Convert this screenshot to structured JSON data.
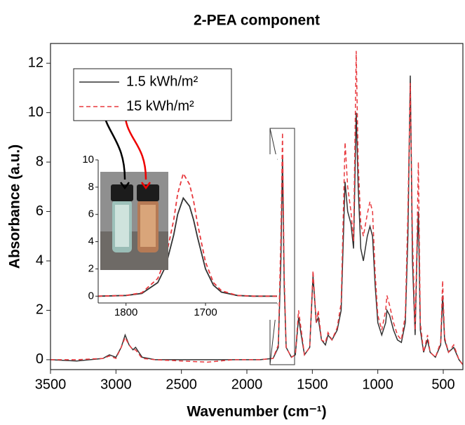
{
  "chart_data": [
    {
      "type": "line",
      "title": "2-PEA component",
      "xlabel": "Wavenumber (cm⁻¹)",
      "ylabel": "Absorbance (a.u.)",
      "x": [
        3500,
        3300,
        3100,
        3050,
        3000,
        2960,
        2930,
        2900,
        2870,
        2850,
        2800,
        2700,
        2500,
        2300,
        2100,
        1900,
        1800,
        1760,
        1740,
        1728,
        1715,
        1700,
        1660,
        1630,
        1605,
        1585,
        1560,
        1520,
        1495,
        1470,
        1455,
        1430,
        1400,
        1380,
        1350,
        1310,
        1280,
        1250,
        1230,
        1205,
        1185,
        1165,
        1150,
        1130,
        1110,
        1080,
        1060,
        1040,
        1020,
        1000,
        970,
        940,
        930,
        910,
        880,
        850,
        820,
        790,
        770,
        752,
        735,
        715,
        700,
        690,
        675,
        650,
        620,
        600,
        560,
        520,
        505,
        490,
        460,
        420,
        380,
        350
      ],
      "series": [
        {
          "name": "1.5 kWh/m²",
          "color": "#333333",
          "line_style": "solid",
          "values": [
            0,
            -0.05,
            0.05,
            0.2,
            0.1,
            0.5,
            1.0,
            0.6,
            0.4,
            0.5,
            0.1,
            0,
            0,
            0,
            0,
            0,
            0.05,
            0.5,
            4,
            8.2,
            3,
            0.5,
            0.1,
            0.2,
            1.7,
            1.0,
            0.2,
            0.5,
            3.4,
            1.5,
            1.7,
            0.8,
            0.6,
            1.0,
            0.8,
            1.2,
            2.0,
            7.2,
            6.0,
            5.5,
            4.5,
            10.0,
            7.0,
            4.5,
            4.0,
            5.0,
            5.4,
            5.0,
            3.0,
            1.5,
            1.0,
            1.5,
            2.0,
            1.8,
            1.2,
            0.8,
            0.7,
            1.5,
            5.0,
            11.5,
            4.0,
            1.0,
            4.5,
            6.0,
            1.2,
            0.3,
            0.8,
            0.3,
            0.1,
            0.6,
            2.6,
            0.8,
            0.3,
            0.5,
            0.0,
            -0.2
          ]
        },
        {
          "name": "15 kWh/m²",
          "color": "#e8383d",
          "line_style": "dashed",
          "values": [
            0,
            0,
            0.05,
            0.15,
            0.05,
            0.5,
            0.9,
            0.6,
            0.4,
            0.4,
            0.05,
            0,
            -0.05,
            -0.1,
            0,
            0,
            0.05,
            0.6,
            5,
            9.2,
            3.5,
            0.5,
            0.1,
            0.2,
            2.0,
            1.2,
            0.2,
            0.5,
            3.6,
            1.5,
            2.0,
            0.8,
            0.7,
            1.1,
            0.8,
            1.3,
            2.3,
            8.8,
            7.0,
            6.0,
            4.8,
            12.5,
            8.0,
            5.5,
            5.0,
            5.9,
            6.4,
            6.0,
            3.5,
            1.8,
            1.2,
            2.0,
            2.6,
            2.2,
            1.5,
            1.0,
            0.8,
            1.8,
            6.0,
            11.2,
            5.0,
            1.2,
            5.0,
            8.0,
            1.5,
            0.3,
            1.0,
            0.3,
            0.1,
            0.7,
            3.2,
            0.9,
            0.3,
            0.6,
            0.0,
            -0.2
          ]
        }
      ],
      "xlim": [
        3500,
        350
      ],
      "ylim": [
        -0.4,
        12.8
      ],
      "xticks": [
        3500,
        3000,
        2500,
        2000,
        1500,
        1000,
        500
      ],
      "yticks": [
        0,
        2,
        4,
        6,
        8,
        10,
        12
      ],
      "legend": "upper left"
    },
    {
      "type": "line",
      "x": [
        1835,
        1800,
        1780,
        1760,
        1750,
        1740,
        1735,
        1728,
        1720,
        1715,
        1710,
        1700,
        1690,
        1680,
        1660,
        1640,
        1610
      ],
      "series": [
        {
          "color": "#333333",
          "line_style": "solid",
          "values": [
            0,
            0.05,
            0.2,
            1.0,
            2.2,
            4.5,
            6.0,
            7.2,
            6.6,
            5.6,
            4.3,
            2.0,
            0.8,
            0.3,
            0.05,
            0,
            0
          ]
        },
        {
          "color": "#e8383d",
          "line_style": "dashed",
          "values": [
            0,
            0.05,
            0.25,
            1.3,
            2.8,
            5.6,
            7.5,
            9.0,
            8.2,
            7.0,
            5.3,
            2.5,
            1.0,
            0.4,
            0.05,
            0,
            0
          ]
        }
      ],
      "xlim": [
        1835,
        1610
      ],
      "ylim": [
        -0.5,
        10
      ],
      "xticks": [
        1800,
        1700
      ],
      "yticks": [
        0,
        2,
        4,
        6,
        8,
        10
      ]
    }
  ]
}
